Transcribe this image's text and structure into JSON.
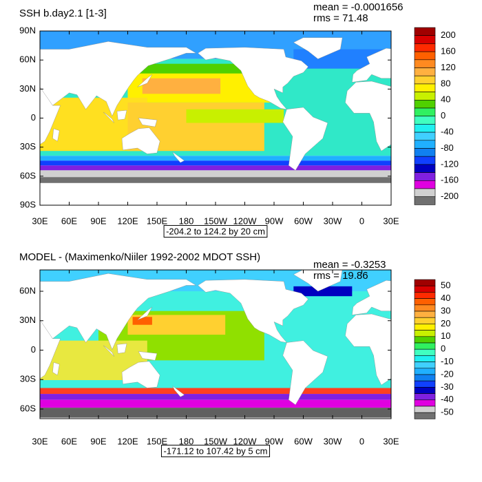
{
  "panels": [
    {
      "title": "SSH b.day2.1 [1-3]",
      "mean": "mean = -0.0001656",
      "rms": "rms = 71.48",
      "lat_labels": [
        "90N",
        "60N",
        "30N",
        "0",
        "30S",
        "60S",
        "90S"
      ],
      "lon_labels": [
        "30E",
        "60E",
        "90E",
        "120E",
        "150E",
        "180",
        "150W",
        "120W",
        "90W",
        "60W",
        "30W",
        "0",
        "30E"
      ],
      "range_label": "-204.2 to 124.2 by 20 cm",
      "colorbar_labels": [
        200,
        160,
        120,
        80,
        40,
        0,
        -40,
        -80,
        -120,
        -160,
        -200
      ],
      "colorbar_colors": [
        "#a00000",
        "#d80000",
        "#ff2a00",
        "#ff6000",
        "#ff8a20",
        "#ffb040",
        "#ffd030",
        "#fff000",
        "#c8f000",
        "#50d000",
        "#30f060",
        "#40ffc0",
        "#20f0f0",
        "#40d0ff",
        "#20b0ff",
        "#1080f0",
        "#1040ff",
        "#0000c0",
        "#8020e0",
        "#e000e0",
        "#d0d0d0",
        "#707070"
      ]
    },
    {
      "title": "MODEL - (Maximenko/Niiler 1992-2002 MDOT SSH)",
      "mean": "mean = -0.3253",
      "rms": "rms = 19.86",
      "lat_labels": [
        "60N",
        "30N",
        "0",
        "30S",
        "60S"
      ],
      "lon_labels": [
        "30E",
        "60E",
        "90E",
        "120E",
        "150E",
        "180",
        "150W",
        "120W",
        "90W",
        "60W",
        "30W",
        "0",
        "30E"
      ],
      "range_label": "-171.12 to 107.42 by 5 cm",
      "colorbar_labels": [
        50,
        40,
        30,
        20,
        10,
        0,
        -10,
        -20,
        -30,
        -40,
        -50
      ],
      "colorbar_colors": [
        "#a00000",
        "#d80000",
        "#ff2a00",
        "#ff6000",
        "#ff8a20",
        "#ffb040",
        "#ffd030",
        "#fff000",
        "#c8f000",
        "#50d000",
        "#30f060",
        "#40ffc0",
        "#20f0f0",
        "#40d0ff",
        "#20b0ff",
        "#1080f0",
        "#1040ff",
        "#0000c0",
        "#8020e0",
        "#e000e0",
        "#d0d0d0",
        "#707070"
      ]
    }
  ]
}
